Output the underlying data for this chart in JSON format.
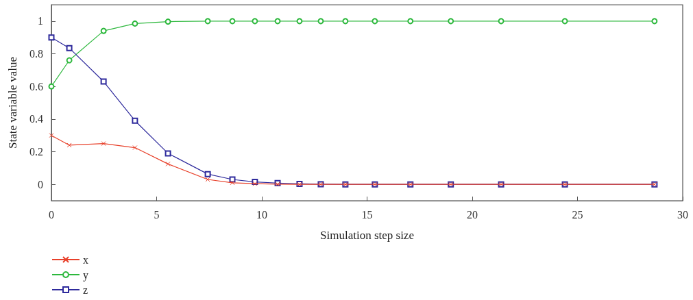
{
  "chart_data": {
    "type": "line",
    "xlabel": "Simulation step size",
    "ylabel": "State variable value",
    "x": [
      0,
      0.85,
      2.48,
      3.97,
      5.54,
      7.43,
      8.6,
      9.67,
      10.75,
      11.79,
      12.8,
      13.97,
      15.37,
      17.06,
      18.98,
      21.37,
      24.4,
      28.66
    ],
    "series": [
      {
        "name": "x",
        "color": "#e8402a",
        "marker": "cross",
        "values": [
          0.3,
          0.24,
          0.25,
          0.225,
          0.125,
          0.03,
          0.01,
          0.004,
          0.001,
          0,
          0,
          0,
          0,
          0,
          0,
          0,
          0,
          0
        ]
      },
      {
        "name": "y",
        "color": "#2db83d",
        "marker": "circle",
        "values": [
          0.6,
          0.76,
          0.94,
          0.985,
          0.997,
          1,
          1,
          1,
          1,
          1,
          1,
          1,
          1,
          1,
          1,
          1,
          1,
          1
        ]
      },
      {
        "name": "z",
        "color": "#2e2a9c",
        "marker": "square",
        "values": [
          0.9,
          0.835,
          0.63,
          0.39,
          0.19,
          0.063,
          0.03,
          0.015,
          0.008,
          0.003,
          0.001,
          0,
          0,
          0,
          0,
          0,
          0,
          0
        ]
      }
    ],
    "xlim": [
      0,
      30
    ],
    "xticks": [
      0,
      5,
      10,
      15,
      20,
      25,
      30
    ],
    "ylim": [
      -0.1,
      1.1
    ],
    "yticks": [
      0,
      0.2,
      0.4,
      0.6,
      0.8,
      1
    ],
    "grid": false,
    "legend": "bottom left",
    "line_style": "solid"
  }
}
